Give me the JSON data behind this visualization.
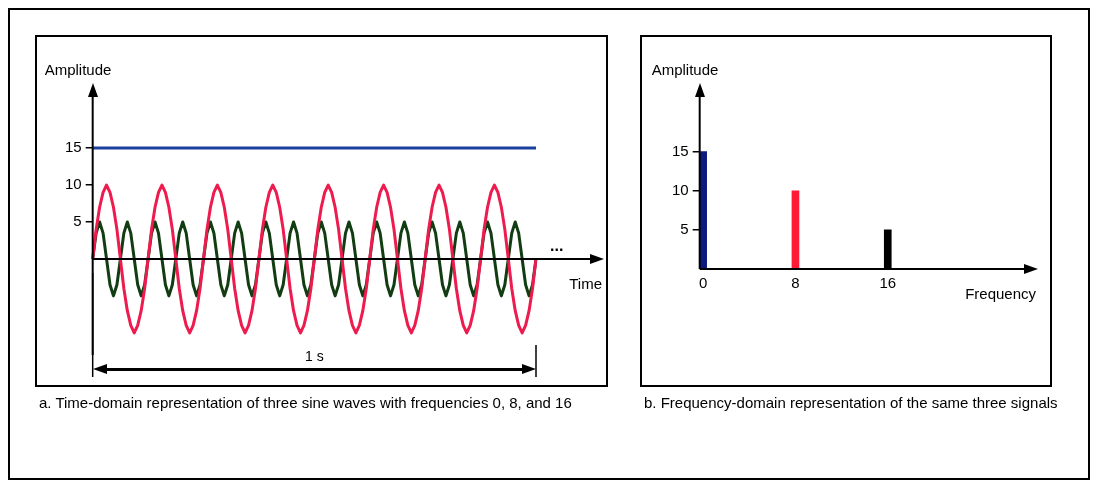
{
  "chart_data": [
    {
      "type": "line",
      "xlabel": "Time",
      "ylabel": "Amplitude",
      "categories": [
        null,
        null,
        null,
        null,
        null,
        null,
        null,
        null,
        null,
        null,
        null,
        null,
        null,
        null,
        null,
        null,
        null,
        null,
        null,
        null,
        null,
        null,
        null,
        null,
        null,
        null,
        null,
        null,
        null,
        null,
        null,
        null,
        null,
        null,
        null,
        null,
        null,
        null,
        null,
        null,
        null,
        null,
        null,
        null,
        null,
        null,
        null,
        null,
        null,
        null,
        null,
        null,
        null,
        null,
        null,
        null,
        null,
        null,
        null,
        null,
        null,
        null,
        null,
        null,
        null,
        null,
        null,
        null,
        null,
        null,
        null,
        null,
        null,
        null,
        null,
        null,
        null,
        null,
        null,
        null,
        null,
        null,
        null,
        null,
        null,
        null,
        null,
        null,
        null,
        null,
        null,
        null,
        null,
        null,
        null,
        null,
        null,
        null,
        null,
        null,
        null,
        null,
        null,
        null,
        null,
        null,
        null,
        null,
        null,
        null,
        null,
        null,
        null,
        null,
        null,
        null,
        null,
        null,
        null,
        null,
        null,
        null,
        null,
        null,
        null,
        null,
        null,
        null,
        null
      ],
      "ylim": [
        -13,
        23
      ],
      "yticks": [
        5,
        10,
        15
      ],
      "tick_labels": "y",
      "legend": false,
      "grid": false,
      "marker": "none",
      "annotations": [
        "1 s",
        "...",
        "a. Time-domain representation of three sine waves with frequencies 0, 8, and 16"
      ],
      "series": [
        {
          "color": "#1a3f9e",
          "values": [
            15,
            15,
            15,
            15,
            15,
            15,
            15,
            15,
            15,
            15,
            15,
            15,
            15,
            15,
            15,
            15,
            15,
            15,
            15,
            15,
            15,
            15,
            15,
            15,
            15,
            15,
            15,
            15,
            15,
            15,
            15,
            15,
            15,
            15,
            15,
            15,
            15,
            15,
            15,
            15,
            15,
            15,
            15,
            15,
            15,
            15,
            15,
            15,
            15,
            15,
            15,
            15,
            15,
            15,
            15,
            15,
            15,
            15,
            15,
            15,
            15,
            15,
            15,
            15,
            15,
            15,
            15,
            15,
            15,
            15,
            15,
            15,
            15,
            15,
            15,
            15,
            15,
            15,
            15,
            15,
            15,
            15,
            15,
            15,
            15,
            15,
            15,
            15,
            15,
            15,
            15,
            15,
            15,
            15,
            15,
            15,
            15,
            15,
            15,
            15,
            15,
            15,
            15,
            15,
            15,
            15,
            15,
            15,
            15,
            15,
            15,
            15,
            15,
            15,
            15,
            15,
            15,
            15,
            15,
            15,
            15,
            15,
            15,
            15,
            15,
            15,
            15,
            15,
            15
          ]
        },
        {
          "color": "#ee1c4e",
          "values": [
            0,
            4,
            7,
            9,
            10,
            9,
            7,
            4,
            0,
            -4,
            -7,
            -9,
            -10,
            -9,
            -7,
            -4,
            0,
            4,
            7,
            9,
            10,
            9,
            7,
            4,
            0,
            -4,
            -7,
            -9,
            -10,
            -9,
            -7,
            -4,
            0,
            4,
            7,
            9,
            10,
            9,
            7,
            4,
            0,
            -4,
            -7,
            -9,
            -10,
            -9,
            -7,
            -4,
            0,
            4,
            7,
            9,
            10,
            9,
            7,
            4,
            0,
            -4,
            -7,
            -9,
            -10,
            -9,
            -7,
            -4,
            0,
            4,
            7,
            9,
            10,
            9,
            7,
            4,
            0,
            -4,
            -7,
            -9,
            -10,
            -9,
            -7,
            -4,
            0,
            4,
            7,
            9,
            10,
            9,
            7,
            4,
            0,
            -4,
            -7,
            -9,
            -10,
            -9,
            -7,
            -4,
            0,
            4,
            7,
            9,
            10,
            9,
            7,
            4,
            0,
            -4,
            -7,
            -9,
            -10,
            -9,
            -7,
            -4,
            0,
            4,
            7,
            9,
            10,
            9,
            7,
            4,
            0,
            -4,
            -7,
            -9,
            -10,
            -9,
            -7,
            -4,
            0
          ]
        },
        {
          "color": "#123d12",
          "values": [
            0,
            3.5,
            5,
            3.5,
            0,
            -3.5,
            -5,
            -3.5,
            0,
            3.5,
            5,
            3.5,
            0,
            -3.5,
            -5,
            -3.5,
            0,
            3.5,
            5,
            3.5,
            0,
            -3.5,
            -5,
            -3.5,
            0,
            3.5,
            5,
            3.5,
            0,
            -3.5,
            -5,
            -3.5,
            0,
            3.5,
            5,
            3.5,
            0,
            -3.5,
            -5,
            -3.5,
            0,
            3.5,
            5,
            3.5,
            0,
            -3.5,
            -5,
            -3.5,
            0,
            3.5,
            5,
            3.5,
            0,
            -3.5,
            -5,
            -3.5,
            0,
            3.5,
            5,
            3.5,
            0,
            -3.5,
            -5,
            -3.5,
            0,
            3.5,
            5,
            3.5,
            0,
            -3.5,
            -5,
            -3.5,
            0,
            3.5,
            5,
            3.5,
            0,
            -3.5,
            -5,
            -3.5,
            0,
            3.5,
            5,
            3.5,
            0,
            -3.5,
            -5,
            -3.5,
            0,
            3.5,
            5,
            3.5,
            0,
            -3.5,
            -5,
            -3.5,
            0,
            3.5,
            5,
            3.5,
            0,
            -3.5,
            -5,
            -3.5,
            0,
            3.5,
            5,
            3.5,
            0,
            -3.5,
            -5,
            -3.5,
            0,
            3.5,
            5,
            3.5,
            0,
            -3.5,
            -5,
            -3.5,
            0,
            3.5,
            5,
            3.5,
            0,
            -3.5,
            -5,
            -3.5,
            0
          ]
        }
      ]
    },
    {
      "type": "bar",
      "xlabel": "Frequency",
      "ylabel": "Amplitude",
      "x": [
        0,
        8,
        16
      ],
      "values": [
        15,
        10,
        5
      ],
      "colors": [
        "#0a1a80",
        "#ff1a36",
        "#000000"
      ],
      "xlim": [
        -0.3,
        28.5
      ],
      "xticks": [
        0,
        8,
        16
      ],
      "ylim": [
        0,
        23
      ],
      "yticks": [
        5,
        10,
        15
      ],
      "legend": false,
      "grid": false,
      "annotations": [
        "b. Frequency-domain representation of the same three signals"
      ]
    }
  ]
}
